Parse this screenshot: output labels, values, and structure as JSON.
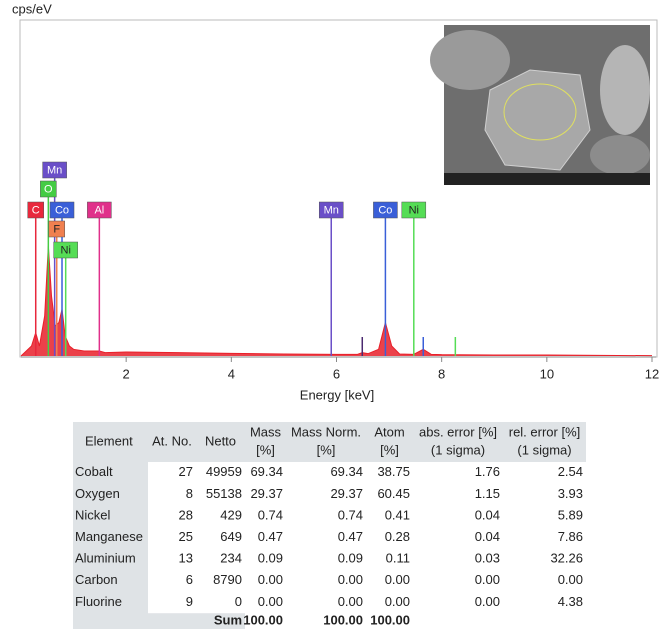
{
  "chart_data": {
    "type": "spectrum",
    "ylabel": "cps/eV",
    "xlabel": "Energy [keV]",
    "xlim": [
      0,
      12
    ],
    "xticks": [
      2,
      4,
      6,
      8,
      10,
      12
    ],
    "ylim": [
      0,
      100
    ],
    "series": [
      {
        "color": "#e8202a",
        "x": [
          0,
          0.2,
          0.28,
          0.35,
          0.45,
          0.52,
          0.58,
          0.65,
          0.72,
          0.78,
          0.84,
          0.92,
          1.0,
          1.2,
          1.49,
          1.6,
          2,
          3,
          4,
          5,
          6,
          6.4,
          6.49,
          6.6,
          6.8,
          6.93,
          7.05,
          7.2,
          7.47,
          7.65,
          7.8,
          8,
          9,
          10,
          11,
          12
        ],
        "values": [
          0,
          3,
          7,
          3,
          12,
          33,
          18,
          9,
          10,
          14,
          6,
          3,
          2,
          1.5,
          1.5,
          1,
          1.2,
          1,
          0.8,
          0.6,
          0.5,
          0.5,
          1,
          0.7,
          2,
          10,
          3,
          0.6,
          0.5,
          2,
          0.5,
          0.4,
          0.3,
          0.3,
          0.2,
          0.1
        ]
      }
    ],
    "markers": [
      {
        "label": "C",
        "energy": 0.28,
        "color": "#e8283c"
      },
      {
        "label": "Mn",
        "energy": 0.64,
        "color": "#6a4fc8"
      },
      {
        "label": "O",
        "energy": 0.52,
        "color": "#44cc44"
      },
      {
        "label": "Co",
        "energy": 0.78,
        "color": "#3a5fd8"
      },
      {
        "label": "Al",
        "energy": 1.49,
        "color": "#e0308a"
      },
      {
        "label": "F",
        "energy": 0.68,
        "color": "#f08050"
      },
      {
        "label": "Ni",
        "energy": 0.85,
        "color": "#55dd55"
      },
      {
        "label": "Mn",
        "energy": 5.9,
        "color": "#6a4fc8"
      },
      {
        "label": "Co",
        "energy": 6.93,
        "color": "#3a5fd8"
      },
      {
        "label": "Ni",
        "energy": 7.47,
        "color": "#55dd55"
      }
    ],
    "minor_lines": [
      {
        "energy": 6.49,
        "color": "#4a2a70"
      },
      {
        "energy": 7.65,
        "color": "#3a5fd8"
      },
      {
        "energy": 8.26,
        "color": "#55dd55"
      }
    ]
  },
  "table": {
    "header": [
      [
        "Element"
      ],
      [
        "At. No."
      ],
      [
        "Netto"
      ],
      [
        "Mass",
        "[%]"
      ],
      [
        "Mass Norm.",
        "[%]"
      ],
      [
        "Atom",
        "[%]"
      ],
      [
        "abs. error [%]",
        "(1 sigma)"
      ],
      [
        "rel. error [%]",
        "(1 sigma)"
      ]
    ],
    "rows": [
      [
        "Cobalt",
        "27",
        "49959",
        "69.34",
        "69.34",
        "38.75",
        "1.76",
        "2.54"
      ],
      [
        "Oxygen",
        "8",
        "55138",
        "29.37",
        "29.37",
        "60.45",
        "1.15",
        "3.93"
      ],
      [
        "Nickel",
        "28",
        "429",
        "0.74",
        "0.74",
        "0.41",
        "0.04",
        "5.89"
      ],
      [
        "Manganese",
        "25",
        "649",
        "0.47",
        "0.47",
        "0.28",
        "0.04",
        "7.86"
      ],
      [
        "Aluminium",
        "13",
        "234",
        "0.09",
        "0.09",
        "0.11",
        "0.03",
        "32.26"
      ],
      [
        "Carbon",
        "6",
        "8790",
        "0.00",
        "0.00",
        "0.00",
        "0.00",
        "0.00"
      ],
      [
        "Fluorine",
        "9",
        "0",
        "0.00",
        "0.00",
        "0.00",
        "0.00",
        "4.38"
      ]
    ],
    "sum": [
      "Sum",
      "100.00",
      "100.00",
      "100.00"
    ]
  }
}
